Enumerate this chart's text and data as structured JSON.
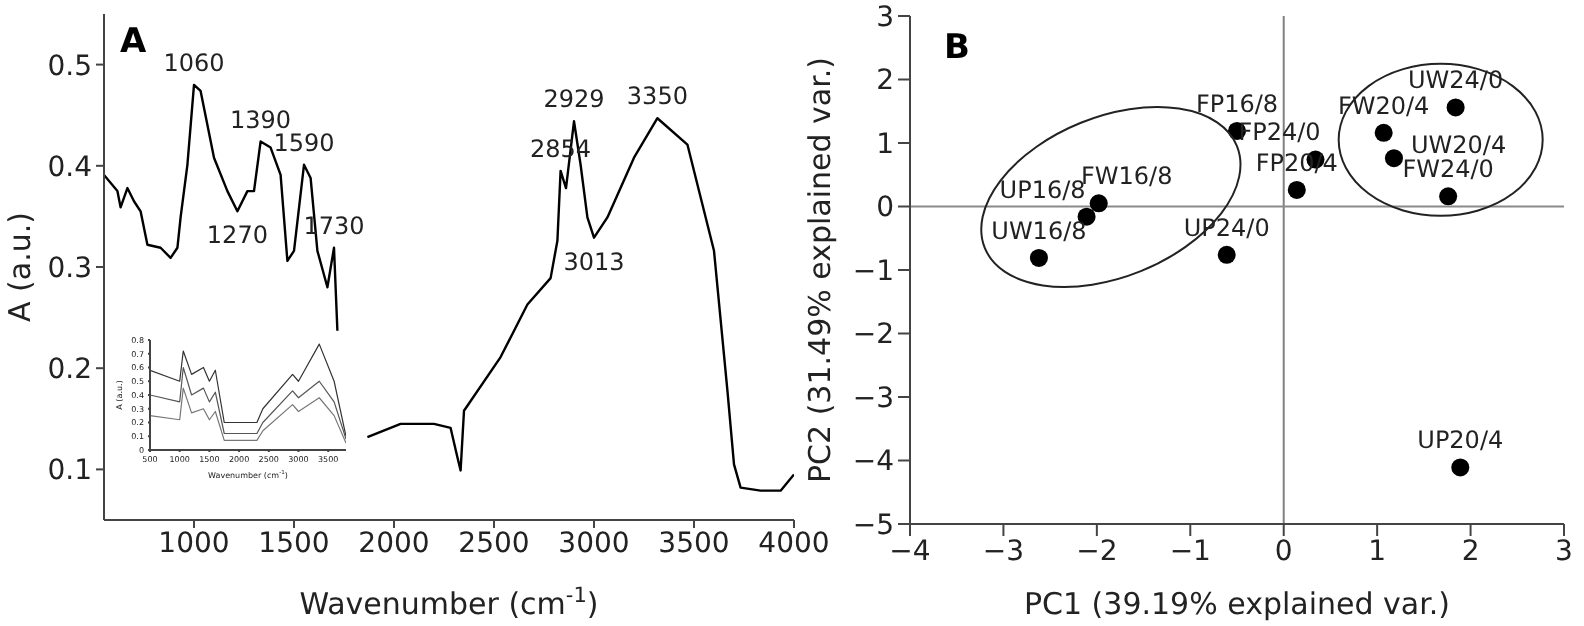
{
  "chart_data": [
    {
      "type": "line",
      "title": "A",
      "xlabel": "Wavenumber (cm$^{-1}$)",
      "ylabel": "A (a.u.)",
      "xlim": [
        550,
        4000
      ],
      "ylim": [
        0.05,
        0.55
      ],
      "xticks": [
        1000,
        1500,
        2000,
        2500,
        3000,
        3500,
        4000
      ],
      "yticks": [
        0.1,
        0.2,
        0.3,
        0.4,
        0.5
      ],
      "color": "#000000",
      "x": [
        550,
        617,
        633,
        667,
        700,
        733,
        767,
        833,
        883,
        917,
        933,
        967,
        1000,
        1033,
        1100,
        1167,
        1217,
        1267,
        1300,
        1333,
        1383,
        1433,
        1467,
        1500,
        1550,
        1583,
        1617,
        1667,
        1700,
        1717,
        1767,
        1867,
        2033,
        2200,
        2283,
        2317,
        2333,
        2350,
        2533,
        2667,
        2783,
        2817,
        2833,
        2860,
        2900,
        2933,
        2967,
        3000,
        3067,
        3200,
        3317,
        3467,
        3600,
        3667,
        3700,
        3733,
        3833,
        3933,
        4000
      ],
      "values": [
        0.391,
        0.375,
        0.359,
        0.378,
        0.365,
        0.355,
        0.322,
        0.319,
        0.309,
        0.319,
        0.349,
        0.401,
        0.48,
        0.474,
        0.408,
        0.375,
        0.355,
        0.375,
        0.375,
        0.424,
        0.418,
        0.391,
        0.306,
        0.316,
        0.401,
        0.388,
        0.316,
        0.28,
        0.319,
        0.237,
        null,
        0.132,
        0.145,
        0.145,
        0.141,
        0.112,
        0.099,
        0.158,
        0.211,
        0.263,
        0.289,
        0.326,
        0.395,
        0.378,
        0.444,
        0.401,
        0.349,
        0.329,
        0.349,
        0.408,
        0.447,
        0.421,
        0.316,
        0.178,
        0.105,
        0.082,
        0.079,
        0.079,
        0.095
      ],
      "annotations": [
        {
          "text": "1060",
          "x": 1000,
          "y": 0.48
        },
        {
          "text": "1270",
          "x": 1217,
          "y": 0.355
        },
        {
          "text": "1390",
          "x": 1333,
          "y": 0.424
        },
        {
          "text": "1590",
          "x": 1550,
          "y": 0.401
        },
        {
          "text": "1730",
          "x": 1700,
          "y": 0.319
        },
        {
          "text": "2854",
          "x": 2833,
          "y": 0.395
        },
        {
          "text": "2929",
          "x": 2900,
          "y": 0.444
        },
        {
          "text": "3013",
          "x": 3000,
          "y": 0.329
        },
        {
          "text": "3350",
          "x": 3317,
          "y": 0.447
        }
      ]
    },
    {
      "type": "scatter",
      "title": "B",
      "xlabel": "PC1 (39.19% explained var.)",
      "ylabel": "PC2 (31.49% explained var.)",
      "xlim": [
        -4,
        3
      ],
      "ylim": [
        -5,
        3
      ],
      "xticks": [
        -4,
        -3,
        -2,
        -1,
        0,
        1,
        2,
        3
      ],
      "yticks": [
        -5,
        -4,
        -3,
        -2,
        -1,
        0,
        1,
        2,
        3
      ],
      "color": "#000000",
      "marker": "circle",
      "x": [
        -0.5,
        0.34,
        0.14,
        1.07,
        1.84,
        1.18,
        1.76,
        -2.11,
        -1.98,
        -2.62,
        -0.61,
        1.89
      ],
      "values": [
        1.19,
        0.74,
        0.26,
        1.16,
        1.56,
        0.76,
        0.16,
        -0.16,
        0.05,
        -0.81,
        -0.76,
        -4.11
      ],
      "value_labels": [
        "FP16/8",
        "FP24/0",
        "FP20/4",
        "FW20/4",
        "UW24/0",
        "UW20/4",
        "FW24/0",
        "UP16/8",
        "FW16/8",
        "UW16/8",
        "UP24/0",
        "UP20/4"
      ],
      "ref_lines": [
        {
          "axis": "x",
          "value": 0,
          "color": "#808080"
        },
        {
          "axis": "y",
          "value": 0,
          "color": "#8a8a8a"
        }
      ]
    },
    {
      "type": "line",
      "xlabel": "Wavenumber (cm$^{-1}$)",
      "ylabel": "A (a.u.)",
      "xlim": [
        500,
        3800
      ],
      "ylim": [
        0,
        0.8
      ],
      "xticks": [
        500,
        1000,
        1500,
        2000,
        2500,
        3000,
        3500
      ],
      "yticks": [
        0,
        0.1,
        0.2,
        0.3,
        0.4,
        0.5,
        0.6,
        0.7,
        0.8
      ],
      "x": [
        500,
        1000,
        1060,
        1200,
        1400,
        1500,
        1600,
        1750,
        2000,
        2300,
        2400,
        2900,
        3000,
        3350,
        3600,
        3800
      ],
      "series": [
        {
          "color": "#333333",
          "values": [
            0.58,
            0.5,
            0.72,
            0.55,
            0.6,
            0.5,
            0.58,
            0.2,
            0.2,
            0.2,
            0.3,
            0.55,
            0.5,
            0.77,
            0.5,
            0.1
          ]
        },
        {
          "color": "#555555",
          "values": [
            0.4,
            0.35,
            0.6,
            0.4,
            0.45,
            0.35,
            0.42,
            0.12,
            0.12,
            0.12,
            0.2,
            0.43,
            0.38,
            0.5,
            0.35,
            0.08
          ]
        },
        {
          "color": "#777777",
          "values": [
            0.25,
            0.22,
            0.45,
            0.27,
            0.3,
            0.22,
            0.28,
            0.07,
            0.07,
            0.07,
            0.14,
            0.33,
            0.28,
            0.38,
            0.25,
            0.05
          ]
        }
      ]
    }
  ]
}
